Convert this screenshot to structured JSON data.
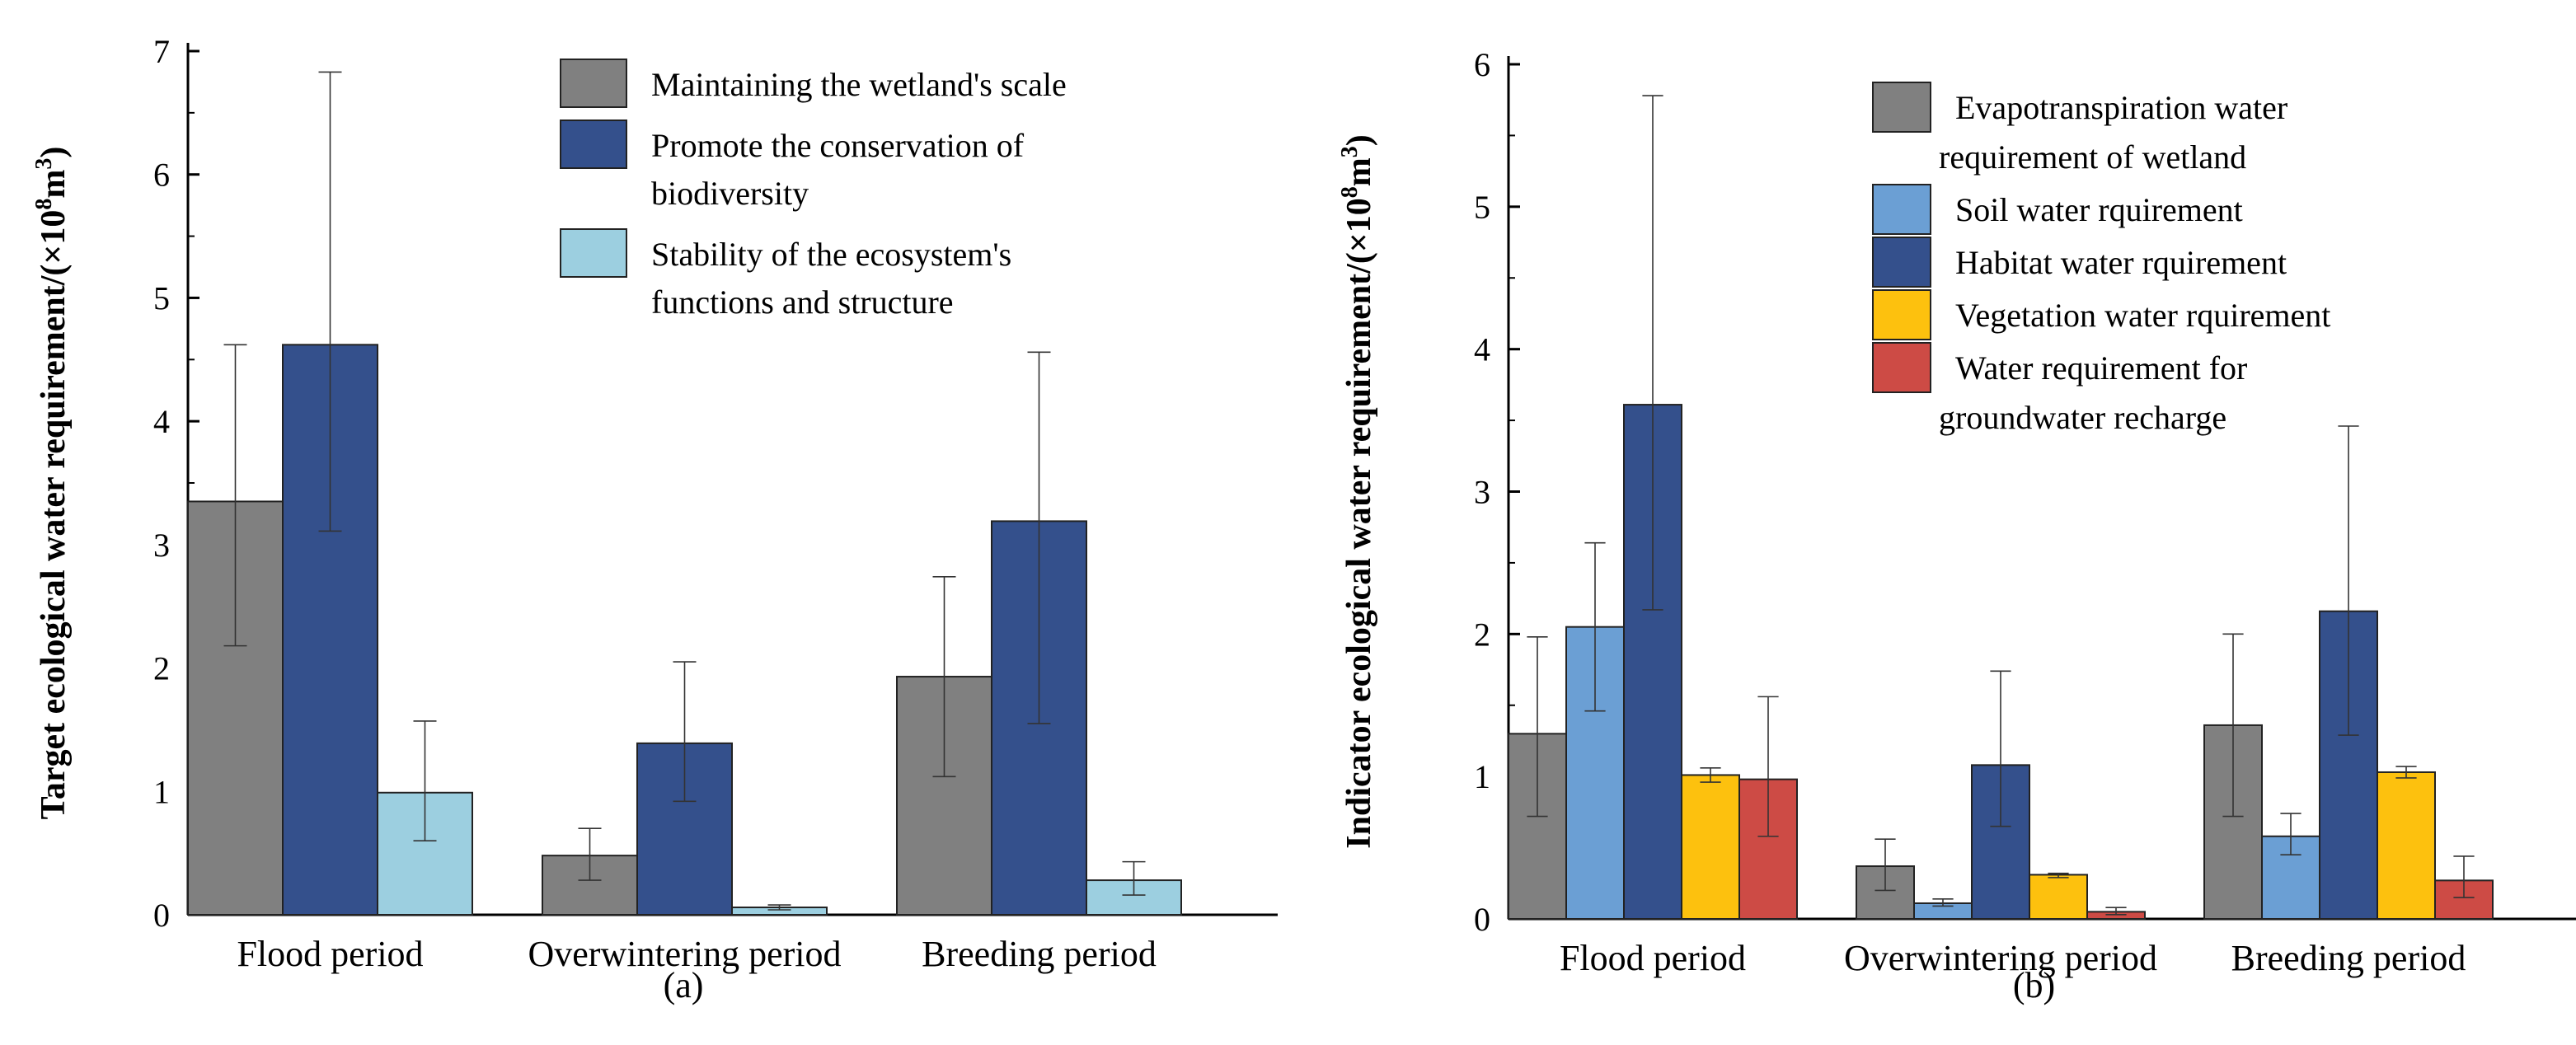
{
  "colors": {
    "gray": "#808080",
    "dark_blue": "#34508c",
    "light_blue": "#9ccfe0",
    "mid_blue": "#6b9fd4",
    "yellow": "#fdc10e",
    "red": "#cd4b45",
    "axis": "#000000"
  },
  "chart_data": [
    {
      "id": "a",
      "type": "bar",
      "panel_label": "(a)",
      "ylabel_main": "Target ecological water requirement/(×10",
      "ylabel_sup1": "8",
      "ylabel_unit": "m",
      "ylabel_sup2": "3",
      "ylabel_close": ")",
      "ylim": [
        0,
        7
      ],
      "yticks": [
        0,
        1,
        2,
        3,
        4,
        5,
        6,
        7
      ],
      "categories": [
        "Flood period",
        "Overwintering period",
        "Breeding period"
      ],
      "series": [
        {
          "name": "Maintaining the wetland's scale",
          "legend_lines": [
            "Maintaining the wetland's scale"
          ],
          "color_key": "gray",
          "values": [
            3.35,
            0.48,
            1.93
          ],
          "err_low": [
            2.18,
            0.28,
            1.12
          ],
          "err_high": [
            4.62,
            0.7,
            2.74
          ]
        },
        {
          "name": "Promote the conservation of biodiversity",
          "legend_lines": [
            "Promote the conservation of",
            "biodiversity"
          ],
          "color_key": "dark_blue",
          "values": [
            4.62,
            1.39,
            3.19
          ],
          "err_low": [
            3.11,
            0.92,
            1.55
          ],
          "err_high": [
            6.83,
            2.05,
            4.56
          ]
        },
        {
          "name": "Stability of the ecosystem's functions and structure",
          "legend_lines": [
            "Stability of the ecosystem's",
            "functions and structure"
          ],
          "color_key": "light_blue",
          "values": [
            0.99,
            0.06,
            0.28
          ],
          "err_low": [
            0.6,
            0.04,
            0.16
          ],
          "err_high": [
            1.57,
            0.08,
            0.43
          ]
        }
      ]
    },
    {
      "id": "b",
      "type": "bar",
      "panel_label": "(b)",
      "ylabel_main": "Indicator ecological water requirement/(×10",
      "ylabel_sup1": "8",
      "ylabel_unit": "m",
      "ylabel_sup2": "3",
      "ylabel_close": ")",
      "ylim": [
        0,
        6
      ],
      "yticks": [
        0,
        1,
        2,
        3,
        4,
        5,
        6
      ],
      "categories": [
        "Flood period",
        "Overwintering period",
        "Breeding period"
      ],
      "series": [
        {
          "name": "Evapotranspiration water requirement of wetland",
          "legend_lines": [
            "Evapotranspiration water",
            "requirement of wetland"
          ],
          "color_key": "gray",
          "values": [
            1.3,
            0.37,
            1.36
          ],
          "err_low": [
            0.72,
            0.2,
            0.72
          ],
          "err_high": [
            1.98,
            0.56,
            2.0
          ]
        },
        {
          "name": "Soil water rquirement",
          "legend_lines": [
            "Soil water rquirement"
          ],
          "color_key": "mid_blue",
          "values": [
            2.05,
            0.11,
            0.58
          ],
          "err_low": [
            1.46,
            0.09,
            0.45
          ],
          "err_high": [
            2.64,
            0.14,
            0.74
          ]
        },
        {
          "name": "Habitat water rquirement",
          "legend_lines": [
            "Habitat water rquirement"
          ],
          "color_key": "dark_blue",
          "values": [
            3.61,
            1.08,
            2.16
          ],
          "err_low": [
            2.17,
            0.65,
            1.29
          ],
          "err_high": [
            5.78,
            1.74,
            3.46
          ]
        },
        {
          "name": "Vegetation water rquirement",
          "legend_lines": [
            "Vegetation water rquirement"
          ],
          "color_key": "yellow",
          "values": [
            1.01,
            0.31,
            1.03
          ],
          "err_low": [
            0.96,
            0.29,
            0.99
          ],
          "err_high": [
            1.06,
            0.32,
            1.07
          ]
        },
        {
          "name": "Water requirement for groundwater recharge",
          "legend_lines": [
            "Water requirement for",
            "groundwater recharge"
          ],
          "color_key": "red",
          "values": [
            0.98,
            0.05,
            0.27
          ],
          "err_low": [
            0.58,
            0.03,
            0.15
          ],
          "err_high": [
            1.56,
            0.08,
            0.44
          ]
        }
      ]
    }
  ]
}
